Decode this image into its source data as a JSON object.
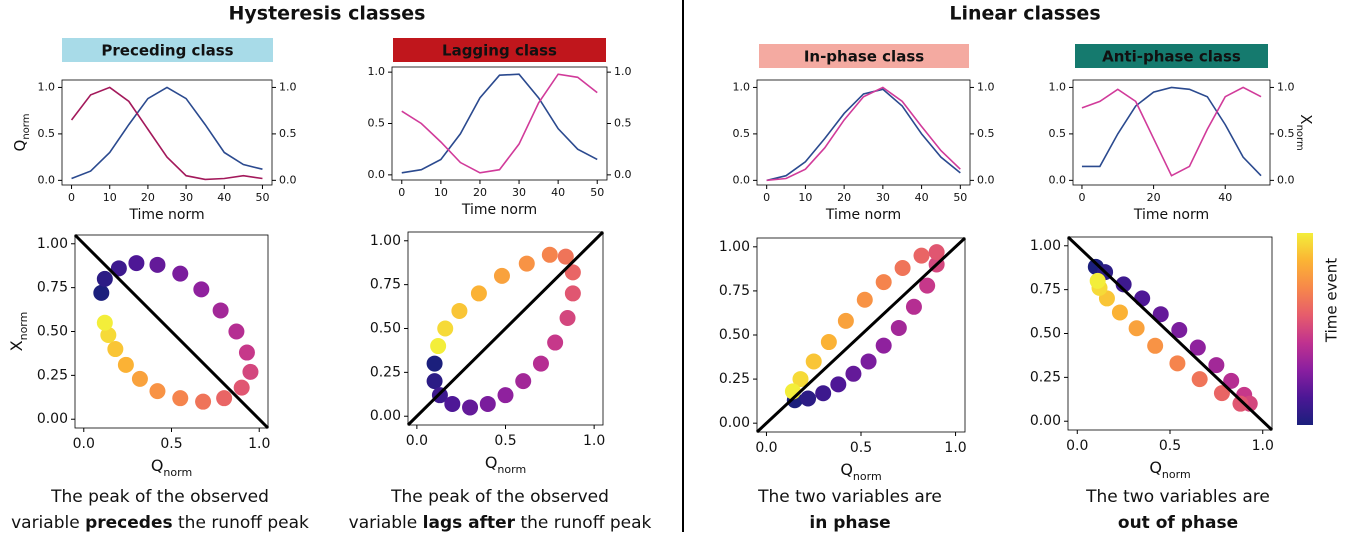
{
  "sections": [
    {
      "title": "Hysteresis classes"
    },
    {
      "title": "Linear classes"
    }
  ],
  "colormap": [
    "#1b1f7c",
    "#4b1795",
    "#8a1fa0",
    "#c0328f",
    "#e65c6c",
    "#f7884a",
    "#fbb434",
    "#f3ee3a"
  ],
  "panels": [
    {
      "class_label": "Preceding class",
      "label_color": "#a8dbe8",
      "caption": [
        [
          {
            "text": "The peak of the observed"
          }
        ],
        [
          {
            "text": "variable "
          },
          {
            "text": "precedes",
            "bold": true
          },
          {
            "text": " the runoff peak"
          }
        ]
      ]
    },
    {
      "class_label": "Lagging class",
      "label_color": "#c0161c",
      "caption": [
        [
          {
            "text": "The peak of the observed"
          }
        ],
        [
          {
            "text": "variable "
          },
          {
            "text": "lags after",
            "bold": true
          },
          {
            "text": " the runoff peak"
          }
        ]
      ]
    },
    {
      "class_label": "In-phase class",
      "label_color": "#f4aaa1",
      "caption": [
        [
          {
            "text": "The two variables are"
          }
        ],
        [
          {
            "text": "in phase",
            "bold": true
          }
        ]
      ]
    },
    {
      "class_label": "Anti-phase class",
      "label_color": "#157a6e",
      "caption": [
        [
          {
            "text": "The two variables are"
          }
        ],
        [
          {
            "text": "out of phase",
            "bold": true
          }
        ]
      ]
    }
  ],
  "chart_data": [
    {
      "type": "line",
      "x": [
        0,
        5,
        10,
        15,
        20,
        25,
        30,
        35,
        40,
        45,
        50
      ],
      "xlim": [
        -2.5,
        52.5
      ],
      "xticks": [
        0,
        10,
        20,
        30,
        40,
        50
      ],
      "ylim": [
        -0.05,
        1.08
      ],
      "yticks": [
        {
          "value": 0,
          "label": "0.0"
        },
        {
          "value": 0.5,
          "label": "0.5"
        },
        {
          "value": 1,
          "label": "1.0"
        }
      ],
      "y2lim": [
        -0.05,
        1.08
      ],
      "y2ticks": [
        {
          "value": 0,
          "label": "0.0"
        },
        {
          "value": 0.5,
          "label": "0.5"
        },
        {
          "value": 1,
          "label": "1.0"
        }
      ],
      "xlabel": "Time norm",
      "ylabel": "Q",
      "ylabel_sub": "norm",
      "series": [
        {
          "color": "#2b4a8f",
          "values": [
            0.02,
            0.1,
            0.3,
            0.6,
            0.88,
            1.0,
            0.88,
            0.6,
            0.3,
            0.17,
            0.12
          ]
        },
        {
          "color": "#a3195b",
          "axis": "y2",
          "values": [
            0.65,
            0.92,
            1.0,
            0.85,
            0.55,
            0.25,
            0.05,
            0.01,
            0.02,
            0.05,
            0.02
          ]
        }
      ]
    },
    {
      "type": "scatter",
      "x": [
        0.1,
        0.12,
        0.2,
        0.3,
        0.42,
        0.55,
        0.67,
        0.78,
        0.87,
        0.93,
        0.95,
        0.9,
        0.8,
        0.68,
        0.55,
        0.42,
        0.32,
        0.24,
        0.18,
        0.14,
        0.12
      ],
      "values": [
        0.72,
        0.8,
        0.86,
        0.89,
        0.88,
        0.83,
        0.74,
        0.62,
        0.5,
        0.38,
        0.27,
        0.18,
        0.12,
        0.1,
        0.12,
        0.16,
        0.23,
        0.31,
        0.4,
        0.48,
        0.55
      ],
      "xlim": [
        -0.05,
        1.05
      ],
      "ylim": [
        -0.05,
        1.05
      ],
      "xticks": [
        {
          "value": 0,
          "label": "0.0"
        },
        {
          "value": 0.5,
          "label": "0.5"
        },
        {
          "value": 1,
          "label": "1.0"
        }
      ],
      "yticks": [
        {
          "value": 0,
          "label": "0.00"
        },
        {
          "value": 0.25,
          "label": "0.25"
        },
        {
          "value": 0.5,
          "label": "0.50"
        },
        {
          "value": 0.75,
          "label": "0.75"
        },
        {
          "value": 1,
          "label": "1.00"
        }
      ],
      "xlabel": "Q",
      "xlabel_sub": "norm",
      "ylabel": "X",
      "ylabel_sub": "norm",
      "diagonal": "down"
    },
    {
      "type": "line",
      "x": [
        0,
        5,
        10,
        15,
        20,
        25,
        30,
        35,
        40,
        45,
        50
      ],
      "xlim": [
        -2.5,
        52.5
      ],
      "xticks": [
        0,
        10,
        20,
        30,
        40,
        50
      ],
      "ylim": [
        -0.05,
        1.05
      ],
      "yticks": [
        {
          "value": 0,
          "label": "0.0"
        },
        {
          "value": 0.5,
          "label": "0.5"
        },
        {
          "value": 1,
          "label": "1.0"
        }
      ],
      "y2lim": [
        -0.05,
        1.05
      ],
      "y2ticks": [
        {
          "value": 0,
          "label": "0.0"
        },
        {
          "value": 0.5,
          "label": "0.5"
        },
        {
          "value": 1,
          "label": "1.0"
        }
      ],
      "xlabel": "Time norm",
      "series": [
        {
          "color": "#2b4a8f",
          "values": [
            0.02,
            0.05,
            0.15,
            0.4,
            0.75,
            0.97,
            0.98,
            0.75,
            0.45,
            0.25,
            0.15
          ]
        },
        {
          "color": "#d13b9a",
          "axis": "y2",
          "values": [
            0.62,
            0.5,
            0.32,
            0.12,
            0.02,
            0.05,
            0.3,
            0.7,
            0.98,
            0.95,
            0.8
          ]
        }
      ]
    },
    {
      "type": "scatter",
      "x": [
        0.1,
        0.1,
        0.13,
        0.2,
        0.3,
        0.4,
        0.5,
        0.6,
        0.7,
        0.78,
        0.85,
        0.88,
        0.88,
        0.84,
        0.75,
        0.62,
        0.48,
        0.35,
        0.24,
        0.16,
        0.12
      ],
      "values": [
        0.3,
        0.2,
        0.12,
        0.07,
        0.05,
        0.07,
        0.12,
        0.2,
        0.3,
        0.42,
        0.56,
        0.7,
        0.82,
        0.91,
        0.92,
        0.87,
        0.8,
        0.7,
        0.6,
        0.5,
        0.4
      ],
      "xlim": [
        -0.05,
        1.05
      ],
      "ylim": [
        -0.05,
        1.05
      ],
      "xticks": [
        {
          "value": 0,
          "label": "0.0"
        },
        {
          "value": 0.5,
          "label": "0.5"
        },
        {
          "value": 1,
          "label": "1.0"
        }
      ],
      "yticks": [
        {
          "value": 0,
          "label": "0.00"
        },
        {
          "value": 0.25,
          "label": "0.25"
        },
        {
          "value": 0.5,
          "label": "0.50"
        },
        {
          "value": 0.75,
          "label": "0.75"
        },
        {
          "value": 1,
          "label": "1.00"
        }
      ],
      "xlabel": "Q",
      "xlabel_sub": "norm",
      "diagonal": "up"
    },
    {
      "type": "line",
      "x": [
        0,
        5,
        10,
        15,
        20,
        25,
        30,
        35,
        40,
        45,
        50
      ],
      "xlim": [
        -2.5,
        52.5
      ],
      "xticks": [
        0,
        10,
        20,
        30,
        40,
        50
      ],
      "ylim": [
        -0.05,
        1.08
      ],
      "yticks": [
        {
          "value": 0,
          "label": "0.0"
        },
        {
          "value": 0.5,
          "label": "0.5"
        },
        {
          "value": 1,
          "label": "1.0"
        }
      ],
      "y2lim": [
        -0.05,
        1.08
      ],
      "y2ticks": [
        {
          "value": 0,
          "label": "0.0"
        },
        {
          "value": 0.5,
          "label": "0.5"
        },
        {
          "value": 1,
          "label": "1.0"
        }
      ],
      "xlabel": "Time norm",
      "series": [
        {
          "color": "#2b4a8f",
          "values": [
            0.0,
            0.05,
            0.2,
            0.45,
            0.72,
            0.93,
            0.98,
            0.8,
            0.5,
            0.25,
            0.08
          ]
        },
        {
          "color": "#d13b9a",
          "axis": "y2",
          "values": [
            0.0,
            0.02,
            0.12,
            0.35,
            0.65,
            0.9,
            1.0,
            0.85,
            0.58,
            0.32,
            0.12
          ]
        }
      ]
    },
    {
      "type": "scatter",
      "x": [
        0.15,
        0.22,
        0.3,
        0.38,
        0.46,
        0.54,
        0.62,
        0.7,
        0.78,
        0.85,
        0.9,
        0.9,
        0.82,
        0.72,
        0.62,
        0.52,
        0.42,
        0.33,
        0.25,
        0.18,
        0.14
      ],
      "values": [
        0.13,
        0.14,
        0.17,
        0.22,
        0.28,
        0.35,
        0.44,
        0.54,
        0.66,
        0.78,
        0.9,
        0.97,
        0.95,
        0.88,
        0.8,
        0.7,
        0.58,
        0.46,
        0.35,
        0.25,
        0.18
      ],
      "xlim": [
        -0.05,
        1.05
      ],
      "ylim": [
        -0.05,
        1.05
      ],
      "xticks": [
        {
          "value": 0,
          "label": "0.0"
        },
        {
          "value": 0.5,
          "label": "0.5"
        },
        {
          "value": 1,
          "label": "1.0"
        }
      ],
      "yticks": [
        {
          "value": 0,
          "label": "0.00"
        },
        {
          "value": 0.25,
          "label": "0.25"
        },
        {
          "value": 0.5,
          "label": "0.50"
        },
        {
          "value": 0.75,
          "label": "0.75"
        },
        {
          "value": 1,
          "label": "1.00"
        }
      ],
      "xlabel": "Q",
      "xlabel_sub": "norm",
      "diagonal": "up"
    },
    {
      "type": "line",
      "x": [
        0,
        5,
        10,
        15,
        20,
        25,
        30,
        35,
        40,
        45,
        50
      ],
      "xlim": [
        -2.5,
        52.5
      ],
      "xticks": [
        0,
        20,
        40
      ],
      "ylim": [
        -0.05,
        1.08
      ],
      "yticks": [
        {
          "value": 0,
          "label": "0.0"
        },
        {
          "value": 0.5,
          "label": "0.5"
        },
        {
          "value": 1,
          "label": "1.0"
        }
      ],
      "y2lim": [
        -0.05,
        1.08
      ],
      "y2ticks": [
        {
          "value": 0,
          "label": "0.0"
        },
        {
          "value": 0.5,
          "label": "0.5"
        },
        {
          "value": 1,
          "label": "1.0"
        }
      ],
      "xlabel": "Time norm",
      "y2label": "X",
      "y2label_sub": "norm",
      "series": [
        {
          "color": "#2b4a8f",
          "values": [
            0.15,
            0.15,
            0.5,
            0.8,
            0.95,
            1.0,
            0.98,
            0.9,
            0.6,
            0.25,
            0.05
          ]
        },
        {
          "color": "#d13b9a",
          "axis": "y2",
          "values": [
            0.78,
            0.85,
            0.98,
            0.85,
            0.45,
            0.05,
            0.15,
            0.55,
            0.9,
            1.0,
            0.9
          ]
        }
      ]
    },
    {
      "type": "scatter",
      "x": [
        0.1,
        0.15,
        0.25,
        0.35,
        0.45,
        0.55,
        0.65,
        0.75,
        0.83,
        0.9,
        0.93,
        0.88,
        0.78,
        0.66,
        0.54,
        0.42,
        0.32,
        0.23,
        0.16,
        0.12,
        0.11
      ],
      "values": [
        0.88,
        0.85,
        0.78,
        0.7,
        0.61,
        0.52,
        0.42,
        0.32,
        0.23,
        0.15,
        0.1,
        0.1,
        0.16,
        0.24,
        0.33,
        0.43,
        0.53,
        0.62,
        0.7,
        0.76,
        0.8
      ],
      "xlim": [
        -0.05,
        1.05
      ],
      "ylim": [
        -0.05,
        1.05
      ],
      "xticks": [
        {
          "value": 0,
          "label": "0.0"
        },
        {
          "value": 0.5,
          "label": "0.5"
        },
        {
          "value": 1,
          "label": "1.0"
        }
      ],
      "yticks": [
        {
          "value": 0,
          "label": "0.00"
        },
        {
          "value": 0.25,
          "label": "0.25"
        },
        {
          "value": 0.5,
          "label": "0.50"
        },
        {
          "value": 0.75,
          "label": "0.75"
        },
        {
          "value": 1,
          "label": "1.00"
        }
      ],
      "xlabel": "Q",
      "xlabel_sub": "norm",
      "diagonal": "down",
      "colorbar_label": "Time event"
    }
  ]
}
